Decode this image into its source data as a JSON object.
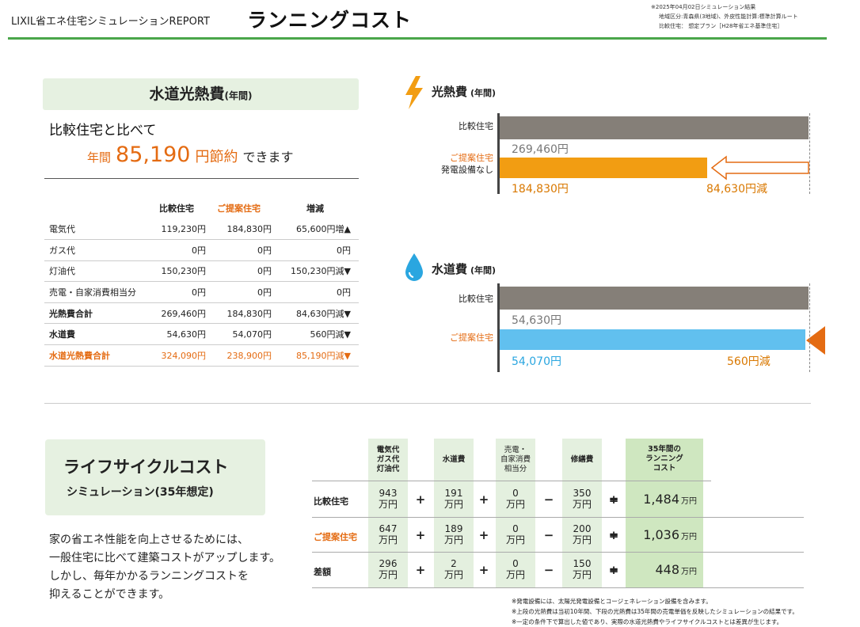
{
  "header": {
    "brand": "LIXIL省エネ住宅シミュレーションREPORT",
    "title": "ランニングコスト",
    "meta": [
      "※2025年04月02日シミュレーション結果",
      "地域区分:青森県(3地域)、外皮性能計算:標準計算ルート",
      "比較住宅： 想定プラン［H28年省エネ基準住宅］"
    ]
  },
  "utility": {
    "banner_main": "水道光熱費",
    "banner_sub": "(年間)",
    "compare_text": "比較住宅と比べて",
    "savings_prefix": "年間",
    "savings_amount": "85,190",
    "savings_unit": "円節約",
    "savings_suffix": "できます",
    "columns": [
      "比較住宅",
      "ご提案住宅",
      "増減"
    ],
    "rows": [
      {
        "label": "電気代",
        "a": "119,230円",
        "b": "184,830円",
        "d": "65,600円増▲"
      },
      {
        "label": "ガス代",
        "a": "0円",
        "b": "0円",
        "d": "0円"
      },
      {
        "label": "灯油代",
        "a": "150,230円",
        "b": "0円",
        "d": "150,230円減▼"
      },
      {
        "label": "売電・自家消費相当分",
        "a": "0円",
        "b": "0円",
        "d": "0円"
      },
      {
        "label": "光熱費合計",
        "a": "269,460円",
        "b": "184,830円",
        "d": "84,630円減▼"
      },
      {
        "label": "水道費",
        "a": "54,630円",
        "b": "54,070円",
        "d": "560円減▼"
      },
      {
        "label": "水道光熱費合計",
        "a": "324,090円",
        "b": "238,900円",
        "d": "85,190円減▼"
      }
    ]
  },
  "energy_chart": {
    "title": "光熱費",
    "title_sub": "(年間)",
    "label_compare": "比較住宅",
    "label_proposed_1": "ご提案住宅",
    "label_proposed_2": "発電設備なし",
    "value_compare": "269,460円",
    "value_proposed": "184,830円",
    "diff": "84,630円減"
  },
  "water_chart": {
    "title": "水道費",
    "title_sub": "(年間)",
    "label_compare": "比較住宅",
    "label_proposed": "ご提案住宅",
    "value_compare": "54,630円",
    "value_proposed": "54,070円",
    "diff": "560円減"
  },
  "chart_data": [
    {
      "type": "bar",
      "categories": [
        "比較住宅",
        "ご提案住宅"
      ],
      "values": [
        269460,
        184830
      ],
      "title": "光熱費"
    },
    {
      "type": "bar",
      "categories": [
        "比較住宅",
        "ご提案住宅"
      ],
      "values": [
        54630,
        54070
      ],
      "title": "水道費"
    }
  ],
  "lifecycle": {
    "title": "ライフサイクルコスト",
    "subtitle": "シミュレーション(35年想定)",
    "description": [
      "家の省エネ性能を向上させるためには、",
      "一般住宅に比べて建築コストがアップします。",
      "しかし、毎年かかるランニングコストを",
      "抑えることができます。"
    ],
    "headers": {
      "energy": [
        "電気代",
        "ガス代",
        "灯油代"
      ],
      "water": "水道費",
      "sell": [
        "売電・",
        "自家消費",
        "相当分"
      ],
      "repair": "修繕費",
      "total": [
        "35年間の",
        "ランニング",
        "コスト"
      ]
    },
    "unit": "万円",
    "ops": [
      "+",
      "+",
      "−",
      "+",
      "="
    ],
    "rows": [
      {
        "label": "比較住宅",
        "energy": "943",
        "water": "191",
        "sell": "0",
        "repair": "350",
        "total": "1,484"
      },
      {
        "label": "ご提案住宅",
        "energy": "647",
        "water": "189",
        "sell": "0",
        "repair": "200",
        "total": "1,036"
      },
      {
        "label": "差額",
        "energy": "296",
        "water": "2",
        "sell": "0",
        "repair": "150",
        "total": "448"
      }
    ]
  },
  "notes": [
    "※発電設備には、太陽光発電設備とコージェネレーション設備を含みます。",
    "※上段の光熱費は当初10年間、下段の光熱費は35年間の売電単価を反映したシミュレーションの結果です。",
    "※一定の条件下で算出した値であり、実際の水道光熱費やライフサイクルコストとは差異が生じます。"
  ],
  "colors": {
    "accent_green": "#4aa64a",
    "orange": "#f29d12",
    "blue": "#61c0ef",
    "gray": "#857f78",
    "highlight": "#e46b12"
  }
}
